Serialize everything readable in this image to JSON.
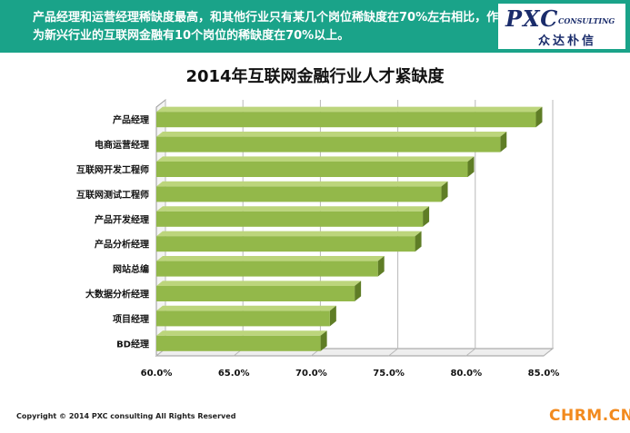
{
  "header": {
    "text": "产品经理和运营经理稀缺度最高，和其他行业只有某几个岗位稀缺度在70%左右相比，作为新兴行业的互联网金融有10个岗位的稀缺度在70%以上。",
    "logo_main": "PXC",
    "logo_sub": "CONSULTING",
    "logo_cn": "众达朴信"
  },
  "footer": {
    "copyright": "Copyright © 2014  PXC consulting All Rights Reserved",
    "watermark": "CHRM.CN"
  },
  "colors": {
    "banner": "#1aa389",
    "bar_front": "#93b84a",
    "bar_top": "#bcd57c",
    "bar_side": "#5f7d26",
    "watermark": "#f28a1e"
  },
  "chart_data": {
    "type": "bar",
    "orientation": "horizontal",
    "title": "2014年互联网金融行业人才紧缺度",
    "categories": [
      "产品经理",
      "电商运营经理",
      "互联网开发工程师",
      "互联网测试工程师",
      "产品开发经理",
      "产品分析经理",
      "网站总编",
      "大数据分析经理",
      "项目经理",
      "BD经理"
    ],
    "values": [
      84.5,
      82.2,
      80.1,
      78.4,
      77.2,
      76.7,
      74.3,
      72.8,
      71.2,
      70.6
    ],
    "xlim": [
      60,
      85
    ],
    "ticks": [
      "60.0%",
      "65.0%",
      "70.0%",
      "75.0%",
      "80.0%",
      "85.0%"
    ],
    "grid": true,
    "legend": "none"
  }
}
